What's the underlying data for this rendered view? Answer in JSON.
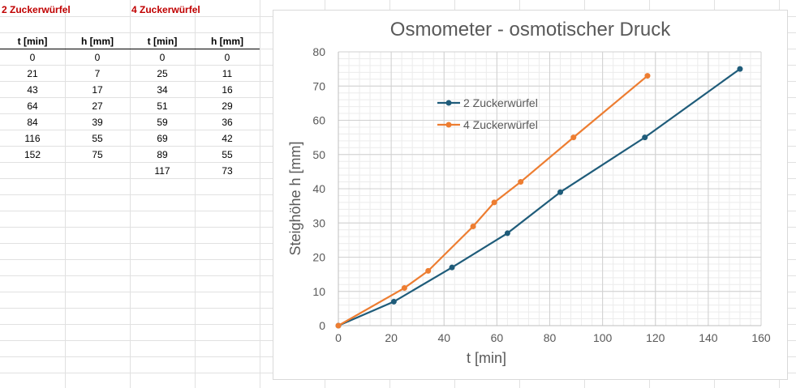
{
  "sheet": {
    "group_a_title": "2 Zuckerwürfel",
    "group_b_title": "4 Zuckerwürfel",
    "col_t_a": "t [min]",
    "col_h_a": "h [mm]",
    "col_t_b": "t [min]",
    "col_h_b": "h [mm]",
    "rows_a": [
      [
        "0",
        "0"
      ],
      [
        "21",
        "7"
      ],
      [
        "43",
        "17"
      ],
      [
        "64",
        "27"
      ],
      [
        "84",
        "39"
      ],
      [
        "116",
        "55"
      ],
      [
        "152",
        "75"
      ]
    ],
    "rows_b": [
      [
        "0",
        "0"
      ],
      [
        "25",
        "11"
      ],
      [
        "34",
        "16"
      ],
      [
        "51",
        "29"
      ],
      [
        "59",
        "36"
      ],
      [
        "69",
        "42"
      ],
      [
        "89",
        "55"
      ],
      [
        "117",
        "73"
      ]
    ]
  },
  "chart_data": {
    "type": "line",
    "title": "Osmometer - osmotischer Druck",
    "xlabel": "t [min]",
    "ylabel": "Steighöhe h [mm]",
    "xlim": [
      0,
      160
    ],
    "ylim": [
      0,
      80
    ],
    "xticks": [
      0,
      20,
      40,
      60,
      80,
      100,
      120,
      140,
      160
    ],
    "yticks": [
      0,
      10,
      20,
      30,
      40,
      50,
      60,
      70,
      80
    ],
    "grid": true,
    "legend_position": "upper-left inside plot",
    "series": [
      {
        "name": "2 Zuckerwürfel",
        "color": "#1f5c7a",
        "x": [
          0,
          21,
          43,
          64,
          84,
          116,
          152
        ],
        "y": [
          0,
          7,
          17,
          27,
          39,
          55,
          75
        ]
      },
      {
        "name": "4 Zuckerwürfel",
        "color": "#ed7d31",
        "x": [
          0,
          25,
          34,
          51,
          59,
          69,
          89,
          117
        ],
        "y": [
          0,
          11,
          16,
          29,
          36,
          42,
          55,
          73
        ]
      }
    ]
  }
}
